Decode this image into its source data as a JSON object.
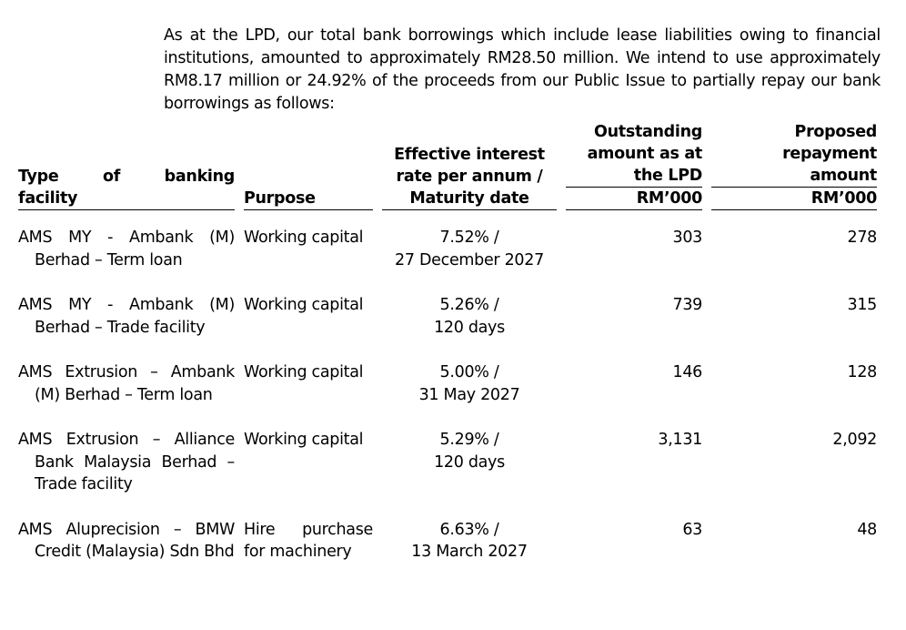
{
  "intro": "As at the LPD, our total bank borrowings which include lease liabilities owing to financial institutions, amounted to approximately RM28.50 million. We intend to use approximately RM8.17 million or 24.92% of the proceeds from our Public Issue to partially repay our bank borrowings as follows:",
  "table": {
    "headers": {
      "type_line1": "Type of banking",
      "type_line2": "facility",
      "purpose": "Purpose",
      "rate_line1": "Effective interest",
      "rate_line2": "rate per annum /",
      "rate_line3": "Maturity date",
      "outstanding_line1": "Outstanding",
      "outstanding_line2": "amount as at",
      "outstanding_line3": "the LPD",
      "outstanding_unit": "RM’000",
      "proposed_line1": "Proposed",
      "proposed_line2": "repayment",
      "proposed_line3": "amount",
      "proposed_unit": "RM’000"
    },
    "rows": [
      {
        "facility": "AMS MY - Ambank (M) Berhad – Term loan",
        "purpose": "Working capital",
        "rate": "7.52% /",
        "maturity": "27 December 2027",
        "outstanding": "303",
        "proposed": "278"
      },
      {
        "facility": "AMS MY - Ambank (M) Berhad – Trade facility",
        "purpose": "Working capital",
        "rate": "5.26% /",
        "maturity": "120 days",
        "outstanding": "739",
        "proposed": "315"
      },
      {
        "facility": "AMS Extrusion – Ambank (M) Berhad – Term loan",
        "purpose": "Working capital",
        "rate": "5.00% /",
        "maturity": "31 May 2027",
        "outstanding": "146",
        "proposed": "128"
      },
      {
        "facility": "AMS Extrusion – Alliance Bank Malaysia Berhad – Trade facility",
        "purpose": "Working capital",
        "rate": "5.29% /",
        "maturity": "120 days",
        "outstanding": "3,131",
        "proposed": "2,092"
      },
      {
        "facility": "AMS Aluprecision – BMW Credit (Malaysia) Sdn Bhd",
        "purpose": "Hire purchase for machinery",
        "rate": "6.63% /",
        "maturity": "13 March 2027",
        "outstanding": "63",
        "proposed": "48"
      }
    ]
  }
}
